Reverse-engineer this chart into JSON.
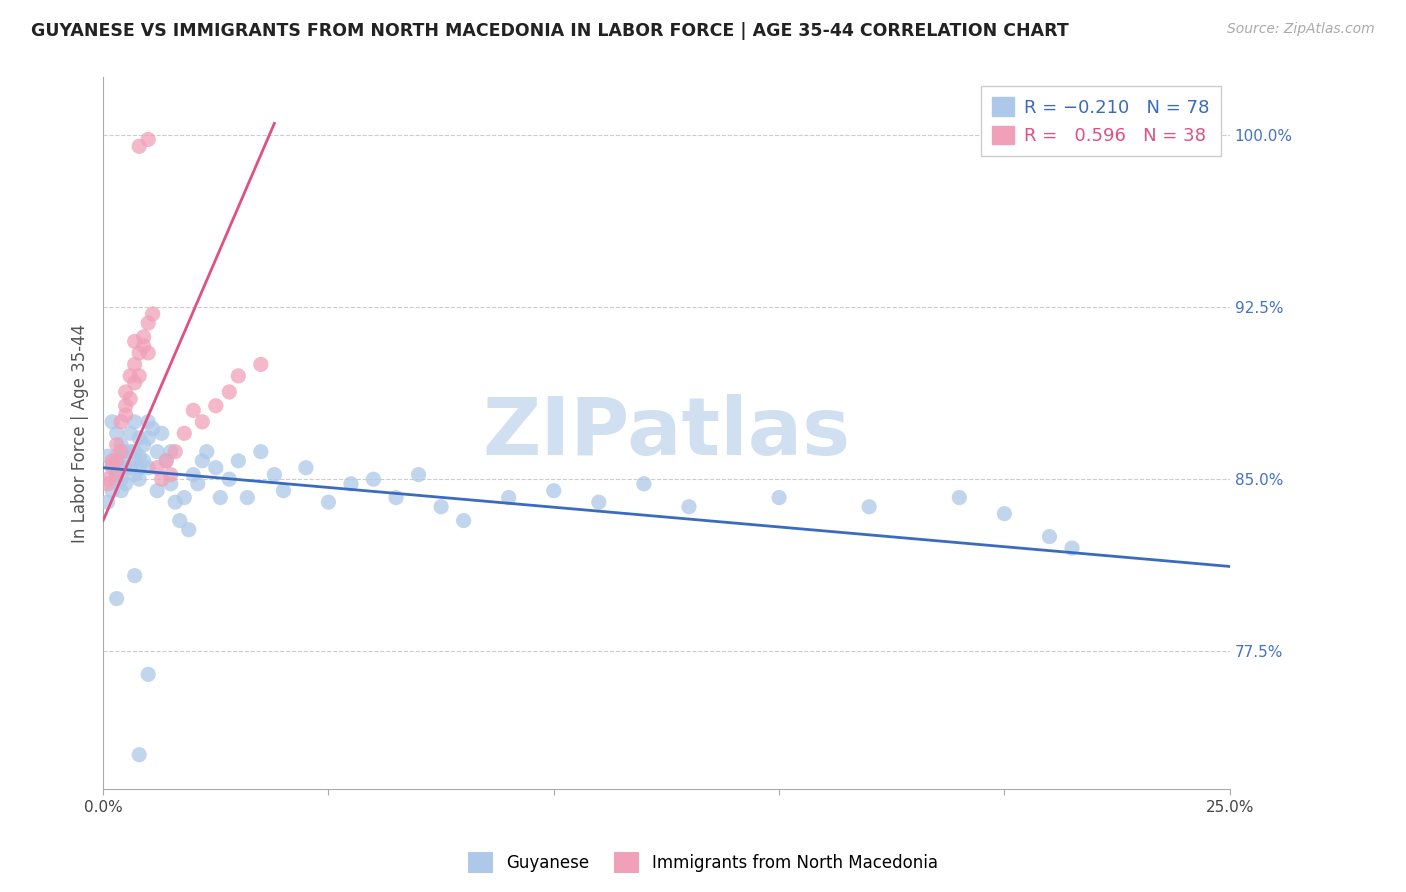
{
  "title": "GUYANESE VS IMMIGRANTS FROM NORTH MACEDONIA IN LABOR FORCE | AGE 35-44 CORRELATION CHART",
  "source": "Source: ZipAtlas.com",
  "ylabel": "In Labor Force | Age 35-44",
  "x_min": 0.0,
  "x_max": 0.25,
  "y_min": 0.715,
  "y_max": 1.025,
  "x_tick_positions": [
    0.0,
    0.05,
    0.1,
    0.15,
    0.2,
    0.25
  ],
  "x_tick_labels": [
    "0.0%",
    "",
    "",
    "",
    "",
    "25.0%"
  ],
  "y_tick_positions": [
    0.775,
    0.85,
    0.925,
    1.0
  ],
  "y_tick_labels": [
    "77.5%",
    "85.0%",
    "92.5%",
    "100.0%"
  ],
  "guyanese_R": -0.21,
  "guyanese_N": 78,
  "macedonia_R": 0.596,
  "macedonia_N": 38,
  "guyanese_color": "#adc8e8",
  "macedonia_color": "#f0a0b8",
  "trend_guyanese_color": "#3a6bbf",
  "trend_macedonia_color": "#e05080",
  "watermark_color": "#ccddf0",
  "guyanese_x": [
    0.001,
    0.001,
    0.002,
    0.002,
    0.002,
    0.003,
    0.003,
    0.003,
    0.003,
    0.004,
    0.004,
    0.004,
    0.004,
    0.005,
    0.005,
    0.005,
    0.006,
    0.006,
    0.006,
    0.007,
    0.007,
    0.007,
    0.007,
    0.008,
    0.008,
    0.008,
    0.008,
    0.009,
    0.009,
    0.01,
    0.01,
    0.01,
    0.011,
    0.012,
    0.012,
    0.013,
    0.014,
    0.015,
    0.015,
    0.016,
    0.017,
    0.018,
    0.019,
    0.02,
    0.021,
    0.022,
    0.023,
    0.025,
    0.026,
    0.028,
    0.03,
    0.032,
    0.035,
    0.038,
    0.04,
    0.045,
    0.05,
    0.055,
    0.06,
    0.065,
    0.07,
    0.075,
    0.08,
    0.09,
    0.1,
    0.11,
    0.12,
    0.13,
    0.15,
    0.17,
    0.19,
    0.2,
    0.21,
    0.215,
    0.003,
    0.007,
    0.008,
    0.01
  ],
  "guyanese_y": [
    0.86,
    0.84,
    0.875,
    0.855,
    0.845,
    0.87,
    0.86,
    0.855,
    0.85,
    0.865,
    0.858,
    0.85,
    0.845,
    0.862,
    0.855,
    0.848,
    0.87,
    0.862,
    0.855,
    0.875,
    0.862,
    0.858,
    0.852,
    0.868,
    0.86,
    0.855,
    0.85,
    0.865,
    0.858,
    0.875,
    0.868,
    0.855,
    0.872,
    0.862,
    0.845,
    0.87,
    0.858,
    0.862,
    0.848,
    0.84,
    0.832,
    0.842,
    0.828,
    0.852,
    0.848,
    0.858,
    0.862,
    0.855,
    0.842,
    0.85,
    0.858,
    0.842,
    0.862,
    0.852,
    0.845,
    0.855,
    0.84,
    0.848,
    0.85,
    0.842,
    0.852,
    0.838,
    0.832,
    0.842,
    0.845,
    0.84,
    0.848,
    0.838,
    0.842,
    0.838,
    0.842,
    0.835,
    0.825,
    0.82,
    0.798,
    0.808,
    0.73,
    0.765
  ],
  "macedonia_x": [
    0.001,
    0.001,
    0.002,
    0.002,
    0.003,
    0.003,
    0.003,
    0.004,
    0.004,
    0.005,
    0.005,
    0.005,
    0.006,
    0.006,
    0.007,
    0.007,
    0.007,
    0.008,
    0.008,
    0.009,
    0.009,
    0.01,
    0.01,
    0.011,
    0.012,
    0.013,
    0.014,
    0.015,
    0.016,
    0.018,
    0.02,
    0.022,
    0.025,
    0.028,
    0.03,
    0.035,
    0.008,
    0.01
  ],
  "macedonia_y": [
    0.85,
    0.848,
    0.858,
    0.856,
    0.865,
    0.858,
    0.852,
    0.875,
    0.862,
    0.882,
    0.878,
    0.888,
    0.885,
    0.895,
    0.9,
    0.892,
    0.91,
    0.905,
    0.895,
    0.912,
    0.908,
    0.918,
    0.905,
    0.922,
    0.855,
    0.85,
    0.858,
    0.852,
    0.862,
    0.87,
    0.88,
    0.875,
    0.882,
    0.888,
    0.895,
    0.9,
    0.995,
    0.998
  ],
  "trend_blue_x0": 0.0,
  "trend_blue_y0": 0.855,
  "trend_blue_x1": 0.25,
  "trend_blue_y1": 0.812,
  "trend_pink_x0": 0.0,
  "trend_pink_y0": 0.832,
  "trend_pink_x1": 0.038,
  "trend_pink_y1": 1.005
}
